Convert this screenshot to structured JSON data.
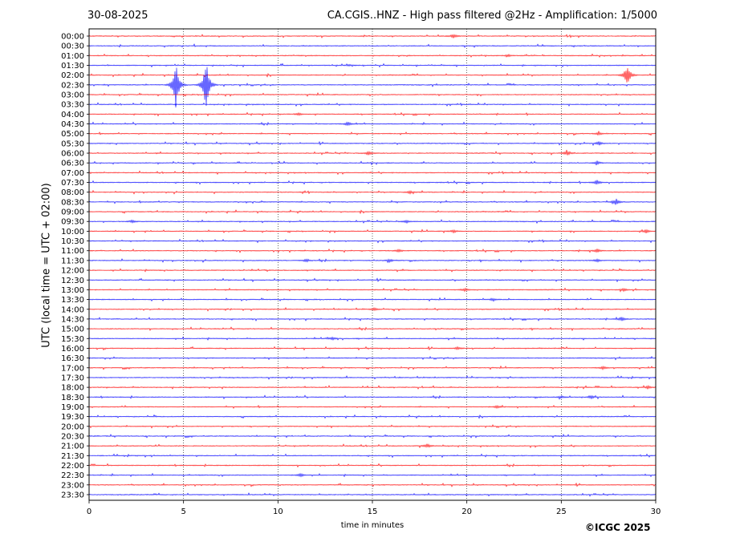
{
  "header": {
    "date": "30-08-2025",
    "title": "CA.CGIS..HNZ - High pass filtered @2Hz - Amplification: 1/5000"
  },
  "footer": {
    "credit": "©ICGC 2025"
  },
  "chart_data": {
    "type": "line",
    "title": "CA.CGIS..HNZ - High pass filtered @2Hz - Amplification: 1/5000",
    "xlabel": "time in minutes",
    "ylabel": "UTC (local time = UTC + 02:00)",
    "xlim": [
      0,
      30
    ],
    "xticks": [
      0,
      5,
      10,
      15,
      20,
      25,
      30
    ],
    "vertical_gridlines_minutes": [
      5,
      10,
      15,
      20,
      25
    ],
    "grid": "dotted vertical lines every 5 minutes",
    "row_labels": [
      "00:00",
      "00:30",
      "01:00",
      "01:30",
      "02:00",
      "02:30",
      "03:00",
      "03:30",
      "04:00",
      "04:30",
      "05:00",
      "05:30",
      "06:00",
      "06:30",
      "07:00",
      "07:30",
      "08:00",
      "08:30",
      "09:00",
      "09:30",
      "10:00",
      "10:30",
      "11:00",
      "11:30",
      "12:00",
      "12:30",
      "13:00",
      "13:30",
      "14:00",
      "14:30",
      "15:00",
      "15:30",
      "16:00",
      "16:30",
      "17:00",
      "17:30",
      "18:00",
      "18:30",
      "19:00",
      "19:30",
      "20:00",
      "20:30",
      "21:00",
      "21:30",
      "22:00",
      "22:30",
      "23:00",
      "23:30"
    ],
    "series_colors": [
      "#ff0000",
      "#0000ff"
    ],
    "color_pattern": "alternating red / blue per trace",
    "events": [
      {
        "row": "00:00",
        "minute": 19.3,
        "amplitude": 0.7,
        "color": "red"
      },
      {
        "row": "01:00",
        "minute": 22.2,
        "amplitude": 0.3,
        "color": "red"
      },
      {
        "row": "01:30",
        "minute": 13.8,
        "amplitude": 0.25,
        "color": "blue"
      },
      {
        "row": "02:30",
        "minute": 4.6,
        "amplitude": 8,
        "color": "blue"
      },
      {
        "row": "02:30",
        "minute": 6.2,
        "amplitude": 8,
        "color": "blue"
      },
      {
        "row": "02:00",
        "minute": 28.5,
        "amplitude": 3.5,
        "color": "red"
      },
      {
        "row": "04:00",
        "minute": 11.1,
        "amplitude": 0.4,
        "color": "red"
      },
      {
        "row": "04:30",
        "minute": 13.7,
        "amplitude": 0.6,
        "color": "blue"
      },
      {
        "row": "05:00",
        "minute": 27.0,
        "amplitude": 0.5,
        "color": "red"
      },
      {
        "row": "05:30",
        "minute": 27.0,
        "amplitude": 0.6,
        "color": "blue"
      },
      {
        "row": "06:00",
        "minute": 14.8,
        "amplitude": 0.7,
        "color": "red"
      },
      {
        "row": "06:00",
        "minute": 25.3,
        "amplitude": 0.9,
        "color": "red"
      },
      {
        "row": "06:30",
        "minute": 26.9,
        "amplitude": 0.6,
        "color": "blue"
      },
      {
        "row": "07:30",
        "minute": 26.9,
        "amplitude": 0.7,
        "color": "blue"
      },
      {
        "row": "08:00",
        "minute": 17.0,
        "amplitude": 0.5,
        "color": "red"
      },
      {
        "row": "08:30",
        "minute": 27.9,
        "amplitude": 1.0,
        "color": "blue"
      },
      {
        "row": "09:30",
        "minute": 2.3,
        "amplitude": 0.5,
        "color": "blue"
      },
      {
        "row": "09:30",
        "minute": 16.8,
        "amplitude": 0.5,
        "color": "blue"
      },
      {
        "row": "10:00",
        "minute": 19.3,
        "amplitude": 0.5,
        "color": "red"
      },
      {
        "row": "10:00",
        "minute": 29.5,
        "amplitude": 0.6,
        "color": "red"
      },
      {
        "row": "11:00",
        "minute": 16.4,
        "amplitude": 0.5,
        "color": "red"
      },
      {
        "row": "11:00",
        "minute": 26.9,
        "amplitude": 0.6,
        "color": "red"
      },
      {
        "row": "11:30",
        "minute": 11.5,
        "amplitude": 0.5,
        "color": "blue"
      },
      {
        "row": "11:30",
        "minute": 15.9,
        "amplitude": 0.5,
        "color": "blue"
      },
      {
        "row": "11:30",
        "minute": 26.9,
        "amplitude": 0.5,
        "color": "blue"
      },
      {
        "row": "13:00",
        "minute": 19.9,
        "amplitude": 0.5,
        "color": "red"
      },
      {
        "row": "13:00",
        "minute": 28.3,
        "amplitude": 0.5,
        "color": "red"
      },
      {
        "row": "13:30",
        "minute": 21.4,
        "amplitude": 0.5,
        "color": "blue"
      },
      {
        "row": "14:00",
        "minute": 15.1,
        "amplitude": 0.5,
        "color": "red"
      },
      {
        "row": "14:30",
        "minute": 28.2,
        "amplitude": 0.7,
        "color": "blue"
      },
      {
        "row": "15:30",
        "minute": 12.9,
        "amplitude": 0.5,
        "color": "blue"
      },
      {
        "row": "16:00",
        "minute": 19.5,
        "amplitude": 0.4,
        "color": "red"
      },
      {
        "row": "17:00",
        "minute": 27.2,
        "amplitude": 0.5,
        "color": "red"
      },
      {
        "row": "18:00",
        "minute": 29.6,
        "amplitude": 0.5,
        "color": "red"
      },
      {
        "row": "18:30",
        "minute": 25.0,
        "amplitude": 0.4,
        "color": "blue"
      },
      {
        "row": "18:30",
        "minute": 26.6,
        "amplitude": 0.5,
        "color": "blue"
      },
      {
        "row": "19:00",
        "minute": 21.6,
        "amplitude": 0.5,
        "color": "red"
      },
      {
        "row": "21:00",
        "minute": 17.9,
        "amplitude": 0.7,
        "color": "red"
      },
      {
        "row": "22:30",
        "minute": 11.2,
        "amplitude": 0.6,
        "color": "blue"
      }
    ]
  }
}
